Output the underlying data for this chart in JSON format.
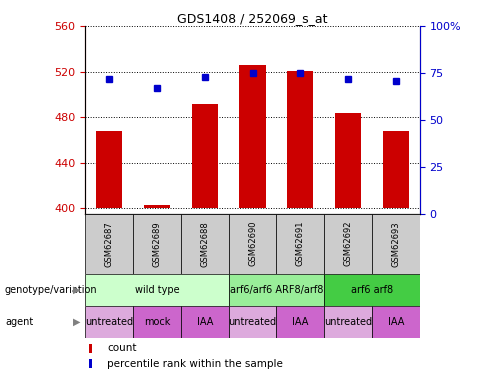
{
  "title": "GDS1408 / 252069_s_at",
  "samples": [
    "GSM62687",
    "GSM62689",
    "GSM62688",
    "GSM62690",
    "GSM62691",
    "GSM62692",
    "GSM62693"
  ],
  "count_values": [
    468,
    403,
    492,
    526,
    521,
    484,
    468
  ],
  "percentile_values": [
    72,
    67,
    73,
    75,
    75,
    72,
    71
  ],
  "ylim_left": [
    395,
    560
  ],
  "ylim_right": [
    0,
    100
  ],
  "yticks_left": [
    400,
    440,
    480,
    520,
    560
  ],
  "yticks_right": [
    0,
    25,
    50,
    75,
    100
  ],
  "bar_color": "#cc0000",
  "dot_color": "#0000cc",
  "bar_width": 0.55,
  "genotype_groups": [
    {
      "label": "wild type",
      "start": 0,
      "end": 2,
      "color": "#ccffcc"
    },
    {
      "label": "arf6/arf6 ARF8/arf8",
      "start": 3,
      "end": 4,
      "color": "#99ee99"
    },
    {
      "label": "arf6 arf8",
      "start": 5,
      "end": 6,
      "color": "#44cc44"
    }
  ],
  "agent_groups": [
    {
      "label": "untreated",
      "start": 0,
      "end": 0,
      "color": "#ddaadd"
    },
    {
      "label": "mock",
      "start": 1,
      "end": 1,
      "color": "#cc66cc"
    },
    {
      "label": "IAA",
      "start": 2,
      "end": 2,
      "color": "#cc66cc"
    },
    {
      "label": "untreated",
      "start": 3,
      "end": 3,
      "color": "#ddaadd"
    },
    {
      "label": "IAA",
      "start": 4,
      "end": 4,
      "color": "#cc66cc"
    },
    {
      "label": "untreated",
      "start": 5,
      "end": 5,
      "color": "#ddaadd"
    },
    {
      "label": "IAA",
      "start": 6,
      "end": 6,
      "color": "#cc66cc"
    }
  ],
  "legend_count_label": "count",
  "legend_pct_label": "percentile rank within the sample",
  "left_axis_color": "#cc0000",
  "right_axis_color": "#0000cc",
  "base_value": 400,
  "sample_box_color": "#cccccc",
  "fig_width": 4.88,
  "fig_height": 3.75,
  "fig_dpi": 100
}
